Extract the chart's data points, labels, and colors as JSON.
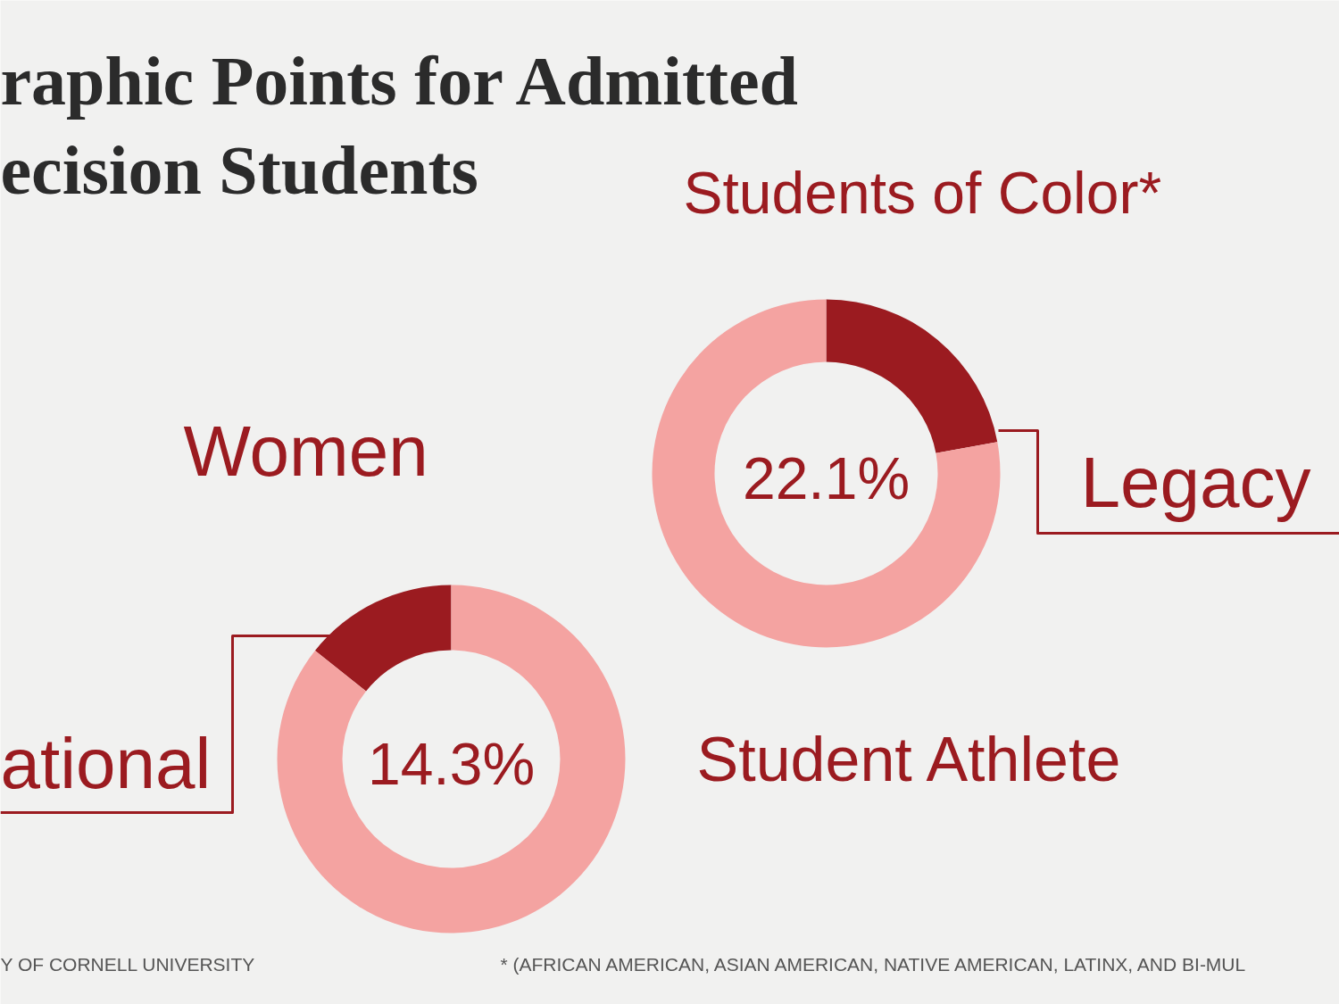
{
  "chart_data": [
    {
      "type": "other",
      "title": "raphic Points for Admitted",
      "subtitle": "ecision Students",
      "annotations": [
        "Y OF CORNELL UNIVERSITY",
        "* (AFRICAN AMERICAN, ASIAN AMERICAN, NATIVE AMERICAN, LATINX, AND BI-MUL"
      ]
    },
    {
      "type": "other",
      "title": "Women"
    },
    {
      "type": "other",
      "title": "Students of Color*"
    },
    {
      "type": "donut",
      "categories": [
        "Legacy",
        null
      ],
      "values": [
        22.1,
        77.9
      ],
      "colors": [
        "#9b1b20",
        "#f4a3a1"
      ],
      "annotations": [
        "22.1%"
      ]
    },
    {
      "type": "donut",
      "categories": [
        "ational",
        null
      ],
      "values": [
        14.3,
        85.7
      ],
      "colors": [
        "#9b1b20",
        "#f4a3a1"
      ],
      "annotations": [
        "14.3%"
      ]
    },
    {
      "type": "other",
      "title": "Student Athlete"
    }
  ]
}
